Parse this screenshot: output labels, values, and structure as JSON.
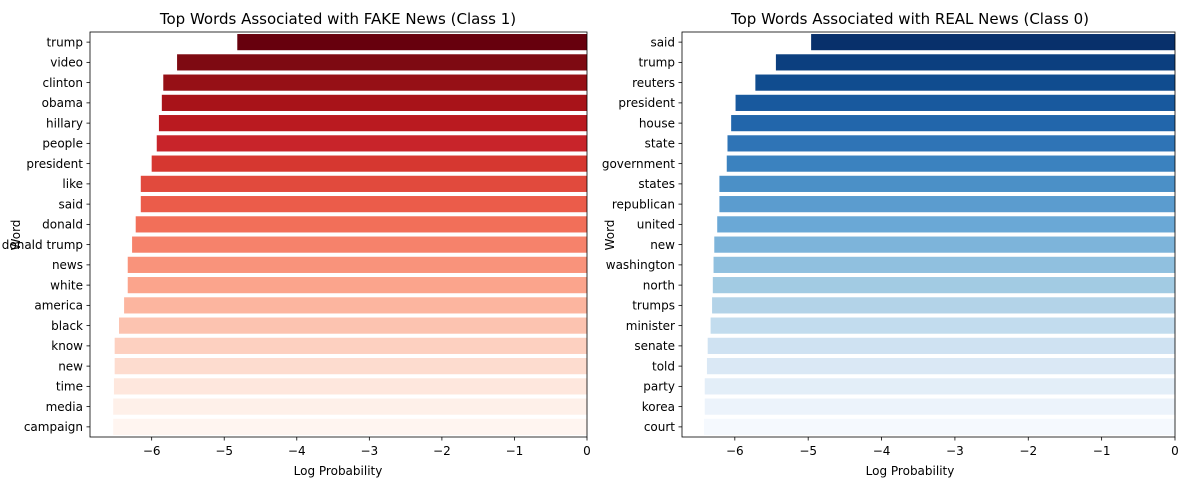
{
  "chart_data": [
    {
      "type": "bar",
      "orientation": "horizontal",
      "title": "Top Words Associated with FAKE News (Class 1)",
      "xlabel": "Log Probability",
      "ylabel": "Word",
      "xlim": [
        -6.85,
        0
      ],
      "xticks": [
        -6,
        -5,
        -4,
        -3,
        -2,
        -1,
        0
      ],
      "xtick_labels": [
        "−6",
        "−5",
        "−4",
        "−3",
        "−2",
        "−1",
        "0"
      ],
      "categories": [
        "trump",
        "video",
        "clinton",
        "obama",
        "hillary",
        "people",
        "president",
        "like",
        "said",
        "donald",
        "donald trump",
        "news",
        "white",
        "america",
        "black",
        "know",
        "new",
        "time",
        "media",
        "campaign"
      ],
      "values": [
        -4.82,
        -5.65,
        -5.84,
        -5.86,
        -5.9,
        -5.93,
        -6.0,
        -6.15,
        -6.15,
        -6.22,
        -6.27,
        -6.33,
        -6.33,
        -6.38,
        -6.45,
        -6.51,
        -6.51,
        -6.52,
        -6.53,
        -6.53
      ],
      "colors": [
        "#67000d",
        "#7e0a12",
        "#961016",
        "#a81319",
        "#ba1a20",
        "#c8242a",
        "#d63730",
        "#e14a3d",
        "#eb5c4a",
        "#f26f59",
        "#f6826b",
        "#f9937b",
        "#fba48c",
        "#fcb59f",
        "#fcc3b0",
        "#fdd0c0",
        "#fddccf",
        "#fee7dd",
        "#fef0e9",
        "#fff5f0"
      ]
    },
    {
      "type": "bar",
      "orientation": "horizontal",
      "title": "Top Words Associated with REAL News (Class 0)",
      "xlabel": "Log Probability",
      "ylabel": "Word",
      "xlim": [
        -6.72,
        0
      ],
      "xticks": [
        -6,
        -5,
        -4,
        -3,
        -2,
        -1,
        0
      ],
      "xtick_labels": [
        "−6",
        "−5",
        "−4",
        "−3",
        "−2",
        "−1",
        "0"
      ],
      "categories": [
        "said",
        "trump",
        "reuters",
        "president",
        "house",
        "state",
        "government",
        "states",
        "republican",
        "united",
        "new",
        "washington",
        "north",
        "trumps",
        "minister",
        "senate",
        "told",
        "party",
        "korea",
        "court"
      ],
      "values": [
        -4.96,
        -5.44,
        -5.72,
        -5.99,
        -6.05,
        -6.1,
        -6.11,
        -6.21,
        -6.21,
        -6.24,
        -6.28,
        -6.29,
        -6.3,
        -6.31,
        -6.33,
        -6.37,
        -6.38,
        -6.41,
        -6.41,
        -6.42
      ],
      "colors": [
        "#08306b",
        "#0c3f7f",
        "#104c8f",
        "#18599e",
        "#2266ab",
        "#2f74b6",
        "#3b82bf",
        "#4b90c7",
        "#5b9ccf",
        "#6aa8d6",
        "#7db4da",
        "#90c0df",
        "#a2cbe3",
        "#b3d3e8",
        "#c2dcee",
        "#cfe2f2",
        "#dae8f5",
        "#e3eef8",
        "#ecf3fb",
        "#f5f9fe"
      ]
    }
  ]
}
